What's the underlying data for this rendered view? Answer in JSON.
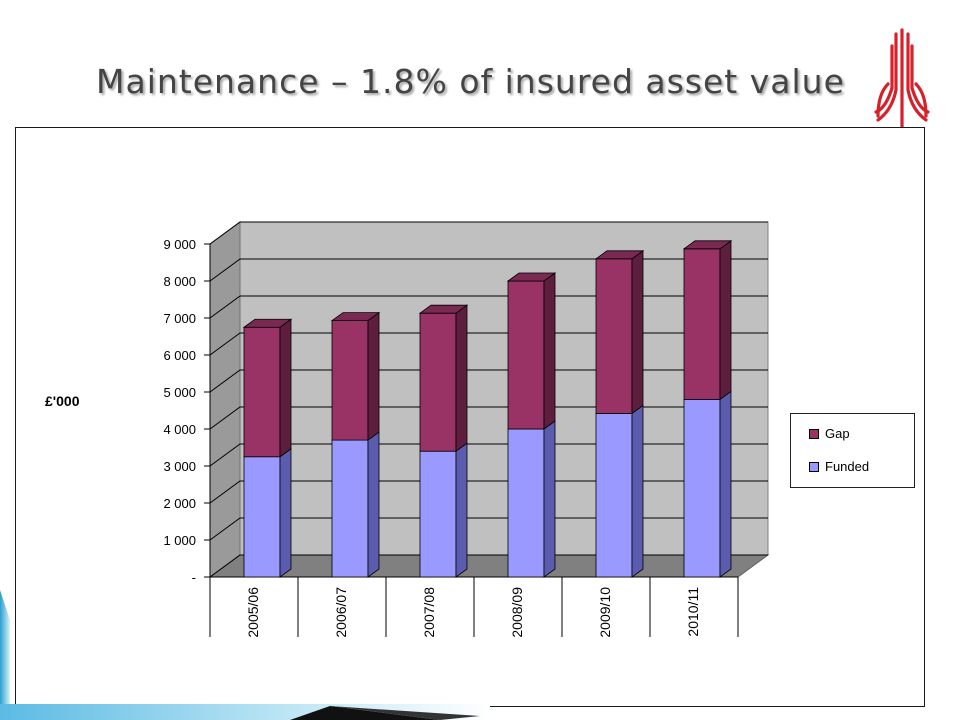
{
  "slide": {
    "title": "Maintenance – 1.8% of insured asset value",
    "logo_icon": "trident-icon"
  },
  "colors": {
    "gap": "#993366",
    "gap_side": "#5e1f3f",
    "gap_top": "#7a2a52",
    "funded": "#9999ff",
    "funded_side": "#5c5cae",
    "funded_top": "#7b7bd6",
    "wall": "#c0c0c0",
    "floor": "#808080",
    "logo": "#d6212b"
  },
  "chart_data": {
    "type": "bar",
    "stacked": true,
    "three_d": true,
    "categories": [
      "2005/06",
      "2006/07",
      "2007/08",
      "2008/09",
      "2009/10",
      "2010/11"
    ],
    "series": [
      {
        "name": "Funded",
        "values": [
          3250,
          3700,
          3400,
          4000,
          4420,
          4800
        ]
      },
      {
        "name": "Gap",
        "values": [
          3500,
          3230,
          3730,
          4000,
          4180,
          4070
        ]
      }
    ],
    "ylabel": "£'000",
    "ylim": [
      0,
      9000
    ],
    "yticks": [
      {
        "value": 0,
        "label": "-"
      },
      {
        "value": 1000,
        "label": "1 000"
      },
      {
        "value": 2000,
        "label": "2 000"
      },
      {
        "value": 3000,
        "label": "3 000"
      },
      {
        "value": 4000,
        "label": "4 000"
      },
      {
        "value": 5000,
        "label": "5 000"
      },
      {
        "value": 6000,
        "label": "6 000"
      },
      {
        "value": 7000,
        "label": "7 000"
      },
      {
        "value": 8000,
        "label": "8 000"
      },
      {
        "value": 9000,
        "label": "9 000"
      }
    ],
    "grid": true,
    "legend": {
      "position": "right",
      "entries": [
        "Gap",
        "Funded"
      ]
    }
  }
}
